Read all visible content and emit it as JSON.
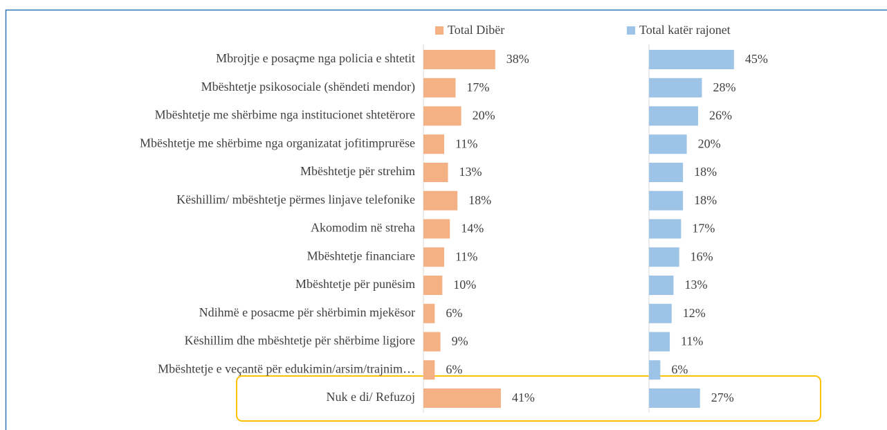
{
  "chart_data": {
    "type": "bar",
    "orientation": "horizontal",
    "categories": [
      "Mbrojtje e posaçme nga policia e shtetit",
      "Mbështetje psikosociale (shëndeti mendor)",
      "Mbështetje me shërbime nga institucionet shtetërore",
      "Mbështetje me shërbime nga organizatat jofitimprurëse",
      "Mbështetje për strehim",
      "Këshillim/ mbështetje përmes linjave telefonike",
      "Akomodim në streha",
      "Mbështetje financiare",
      "Mbështetje për punësim",
      "Ndihmë e posacme për shërbimin mjekësor",
      "Këshillim dhe mbështetje për shërbime ligjore",
      "Mbështetje e veçantë për edukimin/arsim/trajnim…",
      "Nuk e di/ Refuzoj"
    ],
    "series": [
      {
        "name": "Total Dibër",
        "color": "#f4b183",
        "values": [
          38,
          17,
          20,
          11,
          13,
          18,
          14,
          11,
          10,
          6,
          9,
          6,
          41
        ],
        "value_labels": [
          "38%",
          "17%",
          "20%",
          "11%",
          "13%",
          "18%",
          "14%",
          "11%",
          "10%",
          "6%",
          "9%",
          "6%",
          "41%"
        ]
      },
      {
        "name": "Total katër rajonet",
        "color": "#9dc3e6",
        "values": [
          45,
          28,
          26,
          20,
          18,
          18,
          17,
          16,
          13,
          12,
          11,
          6,
          27
        ],
        "value_labels": [
          "45%",
          "28%",
          "26%",
          "20%",
          "18%",
          "18%",
          "17%",
          "16%",
          "13%",
          "12%",
          "11%",
          "6%",
          "27%"
        ]
      }
    ],
    "xlim": [
      0,
      100
    ]
  }
}
